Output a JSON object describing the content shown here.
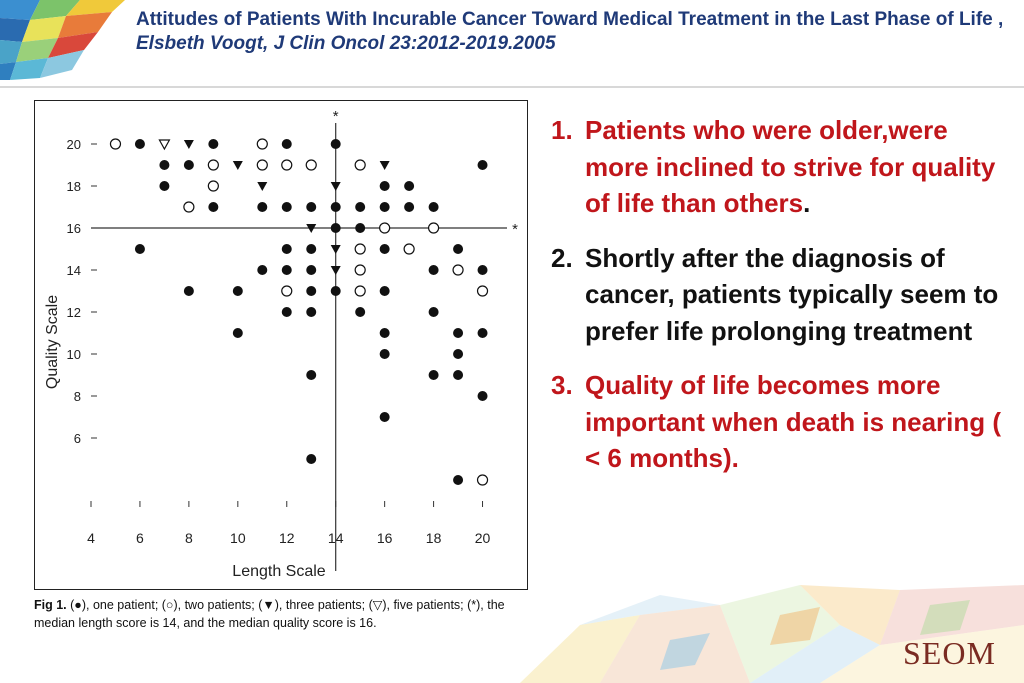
{
  "header": {
    "title": "Attitudes of Patients With Incurable Cancer Toward Medical Treatment in the Last Phase of Life , ",
    "citation": "Elsbeth Voogt, J Clin Oncol 23:2012-2019.2005"
  },
  "figure": {
    "caption_fig": "Fig 1.",
    "caption_text": "(●), one patient; (○), two patients; (▼), three patients; (▽), five patients; (*), the median length score is 14, and the median quality score is 16."
  },
  "chart_data": {
    "type": "scatter",
    "title": "",
    "xlabel": "Length Scale",
    "ylabel": "Quality Scale",
    "xlim": [
      4,
      21
    ],
    "ylim": [
      3,
      21
    ],
    "x_ticks": [
      4,
      6,
      8,
      10,
      12,
      14,
      16,
      18,
      20
    ],
    "y_ticks": [
      6,
      8,
      10,
      12,
      14,
      16,
      18,
      20
    ],
    "median_length": 14,
    "median_quality": 16,
    "median_marker": "*",
    "grid": false,
    "legend": {
      "filled_circle": "one patient",
      "open_circle": "two patients",
      "filled_triangle": "three patients",
      "open_triangle": "five patients"
    },
    "points": [
      {
        "x": 5,
        "y": 20,
        "m": "oc"
      },
      {
        "x": 6,
        "y": 20,
        "m": "fc"
      },
      {
        "x": 7,
        "y": 20,
        "m": "ot"
      },
      {
        "x": 8,
        "y": 20,
        "m": "ft"
      },
      {
        "x": 9,
        "y": 20,
        "m": "fc"
      },
      {
        "x": 11,
        "y": 20,
        "m": "oc"
      },
      {
        "x": 12,
        "y": 20,
        "m": "fc"
      },
      {
        "x": 14,
        "y": 20,
        "m": "fc"
      },
      {
        "x": 7,
        "y": 19,
        "m": "fc"
      },
      {
        "x": 8,
        "y": 19,
        "m": "fc"
      },
      {
        "x": 9,
        "y": 19,
        "m": "oc"
      },
      {
        "x": 10,
        "y": 19,
        "m": "ft"
      },
      {
        "x": 11,
        "y": 19,
        "m": "oc"
      },
      {
        "x": 12,
        "y": 19,
        "m": "oc"
      },
      {
        "x": 13,
        "y": 19,
        "m": "oc"
      },
      {
        "x": 15,
        "y": 19,
        "m": "oc"
      },
      {
        "x": 16,
        "y": 19,
        "m": "ft"
      },
      {
        "x": 20,
        "y": 19,
        "m": "fc"
      },
      {
        "x": 7,
        "y": 18,
        "m": "fc"
      },
      {
        "x": 9,
        "y": 18,
        "m": "oc"
      },
      {
        "x": 11,
        "y": 18,
        "m": "ft"
      },
      {
        "x": 14,
        "y": 18,
        "m": "ft"
      },
      {
        "x": 16,
        "y": 18,
        "m": "fc"
      },
      {
        "x": 17,
        "y": 18,
        "m": "fc"
      },
      {
        "x": 8,
        "y": 17,
        "m": "oc"
      },
      {
        "x": 9,
        "y": 17,
        "m": "fc"
      },
      {
        "x": 11,
        "y": 17,
        "m": "fc"
      },
      {
        "x": 12,
        "y": 17,
        "m": "fc"
      },
      {
        "x": 13,
        "y": 17,
        "m": "fc"
      },
      {
        "x": 14,
        "y": 17,
        "m": "fc"
      },
      {
        "x": 15,
        "y": 17,
        "m": "fc"
      },
      {
        "x": 16,
        "y": 17,
        "m": "fc"
      },
      {
        "x": 17,
        "y": 17,
        "m": "fc"
      },
      {
        "x": 18,
        "y": 17,
        "m": "fc"
      },
      {
        "x": 13,
        "y": 16,
        "m": "ft"
      },
      {
        "x": 14,
        "y": 16,
        "m": "fc"
      },
      {
        "x": 15,
        "y": 16,
        "m": "fc"
      },
      {
        "x": 16,
        "y": 16,
        "m": "oc"
      },
      {
        "x": 18,
        "y": 16,
        "m": "oc"
      },
      {
        "x": 6,
        "y": 15,
        "m": "fc"
      },
      {
        "x": 12,
        "y": 15,
        "m": "fc"
      },
      {
        "x": 13,
        "y": 15,
        "m": "fc"
      },
      {
        "x": 14,
        "y": 15,
        "m": "ft"
      },
      {
        "x": 15,
        "y": 15,
        "m": "oc"
      },
      {
        "x": 16,
        "y": 15,
        "m": "fc"
      },
      {
        "x": 17,
        "y": 15,
        "m": "oc"
      },
      {
        "x": 19,
        "y": 15,
        "m": "fc"
      },
      {
        "x": 11,
        "y": 14,
        "m": "fc"
      },
      {
        "x": 12,
        "y": 14,
        "m": "fc"
      },
      {
        "x": 13,
        "y": 14,
        "m": "fc"
      },
      {
        "x": 14,
        "y": 14,
        "m": "ft"
      },
      {
        "x": 15,
        "y": 14,
        "m": "oc"
      },
      {
        "x": 18,
        "y": 14,
        "m": "fc"
      },
      {
        "x": 19,
        "y": 14,
        "m": "oc"
      },
      {
        "x": 20,
        "y": 14,
        "m": "fc"
      },
      {
        "x": 8,
        "y": 13,
        "m": "fc"
      },
      {
        "x": 10,
        "y": 13,
        "m": "fc"
      },
      {
        "x": 12,
        "y": 13,
        "m": "oc"
      },
      {
        "x": 13,
        "y": 13,
        "m": "fc"
      },
      {
        "x": 14,
        "y": 13,
        "m": "fc"
      },
      {
        "x": 15,
        "y": 13,
        "m": "oc"
      },
      {
        "x": 16,
        "y": 13,
        "m": "fc"
      },
      {
        "x": 20,
        "y": 13,
        "m": "oc"
      },
      {
        "x": 12,
        "y": 12,
        "m": "fc"
      },
      {
        "x": 13,
        "y": 12,
        "m": "fc"
      },
      {
        "x": 15,
        "y": 12,
        "m": "fc"
      },
      {
        "x": 18,
        "y": 12,
        "m": "fc"
      },
      {
        "x": 10,
        "y": 11,
        "m": "fc"
      },
      {
        "x": 16,
        "y": 11,
        "m": "fc"
      },
      {
        "x": 19,
        "y": 11,
        "m": "fc"
      },
      {
        "x": 20,
        "y": 11,
        "m": "fc"
      },
      {
        "x": 16,
        "y": 10,
        "m": "fc"
      },
      {
        "x": 19,
        "y": 10,
        "m": "fc"
      },
      {
        "x": 13,
        "y": 9,
        "m": "fc"
      },
      {
        "x": 18,
        "y": 9,
        "m": "fc"
      },
      {
        "x": 19,
        "y": 9,
        "m": "fc"
      },
      {
        "x": 20,
        "y": 8,
        "m": "fc"
      },
      {
        "x": 16,
        "y": 7,
        "m": "fc"
      },
      {
        "x": 13,
        "y": 5,
        "m": "fc"
      },
      {
        "x": 19,
        "y": 4,
        "m": "fc"
      },
      {
        "x": 20,
        "y": 4,
        "m": "oc"
      }
    ]
  },
  "points": [
    {
      "num": "1.",
      "text": "Patients who were older,were more inclined to strive for quality of life than others",
      "suffix": "."
    },
    {
      "num": "2.",
      "text": "Shortly after the diagnosis of cancer, patients typically seem to prefer life prolonging treatment"
    },
    {
      "num": "3.",
      "text": " Quality of life becomes more important when death is nearing ( < 6 months)."
    }
  ],
  "brand": {
    "logo": "SEOM"
  },
  "colors": {
    "title": "#1f3a78",
    "accent_red": "#c0161b",
    "logo": "#7a2b22"
  }
}
